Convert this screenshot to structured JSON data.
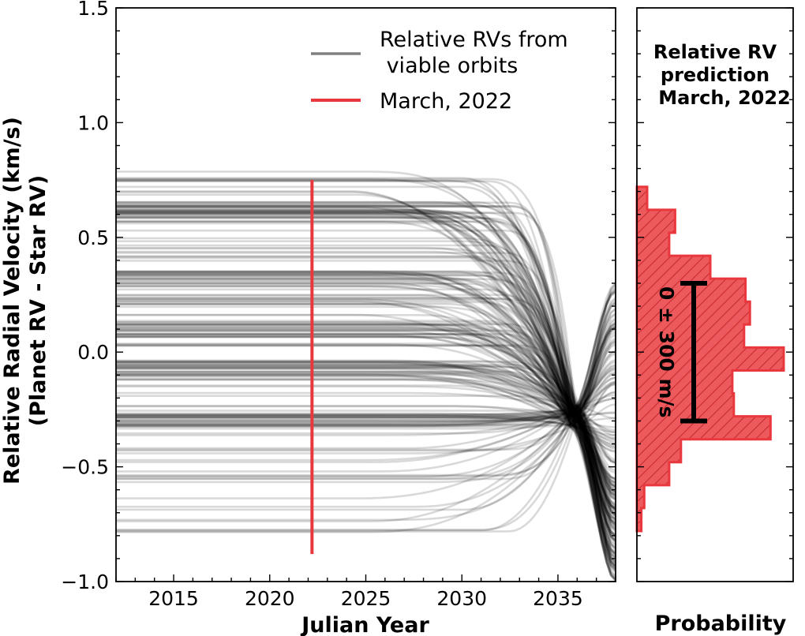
{
  "chart_data": [
    {
      "type": "line",
      "xlabel": "Julian Year",
      "ylabel_line1": "Relative Radial Velocity (km/s)",
      "ylabel_line2": "(Planet RV - Star RV)",
      "xlim": [
        2012.0,
        2038.0
      ],
      "ylim": [
        -1.0,
        1.5
      ],
      "xticks": [
        2015,
        2020,
        2025,
        2030,
        2035
      ],
      "xtick_labels": [
        "2015",
        "2020",
        "2025",
        "2030",
        "2035"
      ],
      "yticks": [
        -1.0,
        -0.5,
        0.0,
        0.5,
        1.0,
        1.5
      ],
      "ytick_labels": [
        "−1.0",
        "−0.5",
        "0.0",
        "0.5",
        "1.0",
        "1.5"
      ],
      "legend": {
        "placement": "top-right",
        "orbits_label_line1": "Relative RVs from",
        "orbits_label_line2": " viable orbits",
        "march_label": "March, 2022"
      },
      "march_marker": {
        "x": 2022.2,
        "y_range": [
          -0.88,
          0.75
        ],
        "color": "#e8383d"
      },
      "orbit_color": "#000000",
      "orbit_count": 220,
      "orbit_model": {
        "start_value_range": [
          -0.8,
          0.82
        ],
        "end_year": 2038.0,
        "end_value_range": [
          -1.0,
          0.3
        ],
        "pinch_point": {
          "x": 2035.8,
          "y": -0.28
        },
        "dense_bands_at_start": [
          0.62,
          0.32,
          0.1,
          -0.07,
          -0.3
        ]
      }
    },
    {
      "type": "histogram",
      "orientation": "horizontal",
      "title_line1": "Relative RV",
      "title_line2": "prediction",
      "title_line3": "March, 2022",
      "xlabel": "Probability",
      "ylim": [
        -1.0,
        1.5
      ],
      "bin_width": 0.1,
      "bins": [
        {
          "low": -0.78,
          "high": -0.68,
          "value": 0.03
        },
        {
          "low": -0.68,
          "high": -0.58,
          "value": 0.05
        },
        {
          "low": -0.58,
          "high": -0.48,
          "value": 0.22
        },
        {
          "low": -0.48,
          "high": -0.38,
          "value": 0.3
        },
        {
          "low": -0.38,
          "high": -0.28,
          "value": 0.91
        },
        {
          "low": -0.28,
          "high": -0.18,
          "value": 0.66
        },
        {
          "low": -0.18,
          "high": -0.08,
          "value": 0.65
        },
        {
          "low": -0.08,
          "high": 0.02,
          "value": 1.0
        },
        {
          "low": 0.02,
          "high": 0.12,
          "value": 0.73
        },
        {
          "low": 0.12,
          "high": 0.22,
          "value": 0.77
        },
        {
          "low": 0.22,
          "high": 0.32,
          "value": 0.74
        },
        {
          "low": 0.32,
          "high": 0.42,
          "value": 0.5
        },
        {
          "low": 0.42,
          "high": 0.52,
          "value": 0.22
        },
        {
          "low": 0.52,
          "high": 0.62,
          "value": 0.26
        },
        {
          "low": 0.62,
          "high": 0.72,
          "value": 0.07
        }
      ],
      "fill_color": "#e8383d",
      "error_bar": {
        "center": 0.0,
        "low": -0.3,
        "high": 0.3,
        "label": "0 ± 300 m/s"
      }
    }
  ]
}
